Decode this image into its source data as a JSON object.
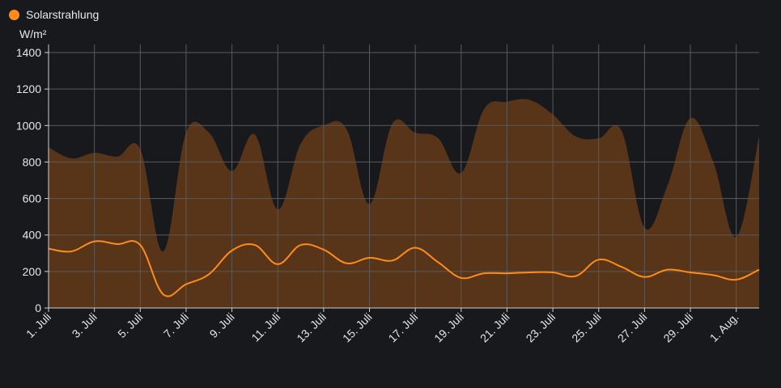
{
  "colors": {
    "background": "#18191d",
    "line": "#ff8c1a",
    "area_fill": "#5c3618",
    "grid": "#5a5a5a"
  },
  "legend": {
    "label": "Solarstrahlung"
  },
  "unit": "W/m²",
  "chart_data": {
    "type": "area",
    "ylim": [
      0,
      1400
    ],
    "y_ticks": [
      "0",
      "200",
      "400",
      "600",
      "800",
      "1000",
      "1200",
      "1400"
    ],
    "x_tick_labels": [
      "1. Juli",
      "3. Juli",
      "5. Juli",
      "7. Juli",
      "9. Juli",
      "11. Juli",
      "13. Juli",
      "15. Juli",
      "17. Juli",
      "19. Juli",
      "21. Juli",
      "23. Juli",
      "25. Juli",
      "27. Juli",
      "29. Juli",
      "1. Aug."
    ],
    "x": [
      "1. Juli",
      "2. Juli",
      "3. Juli",
      "4. Juli",
      "5. Juli",
      "6. Juli",
      "7. Juli",
      "8. Juli",
      "9. Juli",
      "10. Juli",
      "11. Juli",
      "12. Juli",
      "13. Juli",
      "14. Juli",
      "15. Juli",
      "16. Juli",
      "17. Juli",
      "18. Juli",
      "19. Juli",
      "20. Juli",
      "21. Juli",
      "22. Juli",
      "23. Juli",
      "24. Juli",
      "25. Juli",
      "26. Juli",
      "27. Juli",
      "28. Juli",
      "29. Juli",
      "30. Juli",
      "31. Juli",
      "1. Aug."
    ],
    "series": [
      {
        "type": "area",
        "values": [
          880,
          820,
          850,
          830,
          870,
          310,
          960,
          960,
          750,
          950,
          540,
          900,
          1000,
          980,
          570,
          1010,
          960,
          930,
          740,
          1090,
          1130,
          1140,
          1060,
          940,
          930,
          970,
          440,
          670,
          1040,
          800,
          390,
          940
        ]
      },
      {
        "type": "line",
        "values": [
          325,
          310,
          365,
          350,
          345,
          75,
          130,
          185,
          315,
          345,
          240,
          345,
          320,
          245,
          275,
          260,
          330,
          250,
          165,
          190,
          190,
          195,
          195,
          175,
          265,
          225,
          170,
          210,
          195,
          180,
          155,
          210
        ]
      }
    ]
  }
}
